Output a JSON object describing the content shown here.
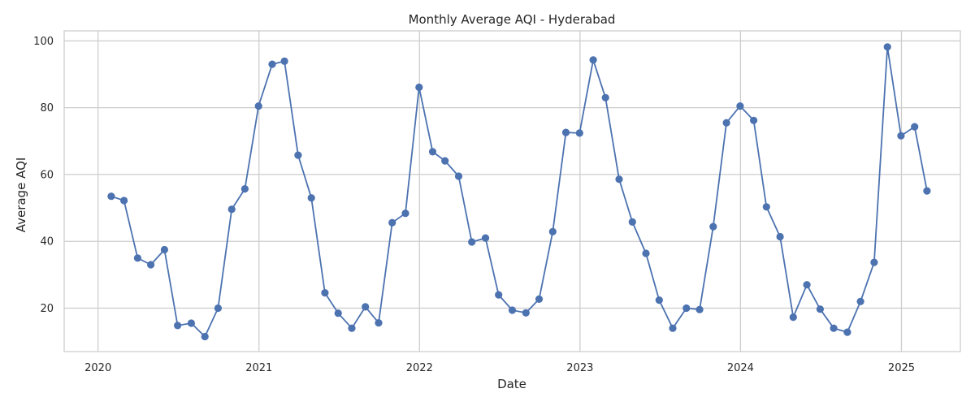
{
  "chart_data": {
    "type": "line",
    "title": "Monthly Average AQI - Hyderabad",
    "xlabel": "Date",
    "ylabel": "Average AQI",
    "x_axis": "date",
    "xlim": [
      "2019-10-16",
      "2025-05-15"
    ],
    "ylim": [
      7,
      103
    ],
    "xticks": [
      {
        "date": "2020-01-01",
        "label": "2020"
      },
      {
        "date": "2021-01-01",
        "label": "2021"
      },
      {
        "date": "2022-01-01",
        "label": "2022"
      },
      {
        "date": "2023-01-01",
        "label": "2023"
      },
      {
        "date": "2024-01-01",
        "label": "2024"
      },
      {
        "date": "2025-01-01",
        "label": "2025"
      }
    ],
    "yticks": [
      20,
      40,
      60,
      80,
      100
    ],
    "grid": true,
    "color": "#4c72b0",
    "series": [
      {
        "marker": "circle",
        "x": [
          "2020-01-31",
          "2020-02-29",
          "2020-03-31",
          "2020-04-30",
          "2020-05-31",
          "2020-06-30",
          "2020-07-31",
          "2020-08-31",
          "2020-09-30",
          "2020-10-31",
          "2020-11-30",
          "2020-12-31",
          "2021-01-31",
          "2021-02-28",
          "2021-03-31",
          "2021-04-30",
          "2021-05-31",
          "2021-06-30",
          "2021-07-31",
          "2021-08-31",
          "2021-09-30",
          "2021-10-31",
          "2021-11-30",
          "2021-12-31",
          "2022-01-31",
          "2022-02-28",
          "2022-03-31",
          "2022-04-30",
          "2022-05-31",
          "2022-06-30",
          "2022-07-31",
          "2022-08-31",
          "2022-09-30",
          "2022-10-31",
          "2022-11-30",
          "2022-12-31",
          "2023-01-31",
          "2023-02-28",
          "2023-03-31",
          "2023-04-30",
          "2023-05-31",
          "2023-06-30",
          "2023-07-31",
          "2023-08-31",
          "2023-09-30",
          "2023-10-31",
          "2023-11-30",
          "2023-12-31",
          "2024-01-31",
          "2024-02-29",
          "2024-03-31",
          "2024-04-30",
          "2024-05-31",
          "2024-06-30",
          "2024-07-31",
          "2024-08-31",
          "2024-09-30",
          "2024-10-31",
          "2024-11-30",
          "2024-12-31",
          "2025-01-31",
          "2025-02-28"
        ],
        "y": [
          53.5,
          52.2,
          35.0,
          33.0,
          37.5,
          14.8,
          15.5,
          11.5,
          20.0,
          49.6,
          55.7,
          80.5,
          93.0,
          93.9,
          65.8,
          53.0,
          24.6,
          18.5,
          14.0,
          20.4,
          15.6,
          45.6,
          48.4,
          86.1,
          66.8,
          64.1,
          59.5,
          39.8,
          41.0,
          24.0,
          19.4,
          18.6,
          22.7,
          42.9,
          72.6,
          72.4,
          94.3,
          83.0,
          58.6,
          45.8,
          36.4,
          22.4,
          14.0,
          20.0,
          19.6,
          44.4,
          75.5,
          80.5,
          76.2,
          50.3,
          41.4,
          17.3,
          27.0,
          19.7,
          14.0,
          12.8,
          22.0,
          33.7,
          98.2,
          71.6,
          74.3,
          55.1
        ]
      }
    ]
  }
}
